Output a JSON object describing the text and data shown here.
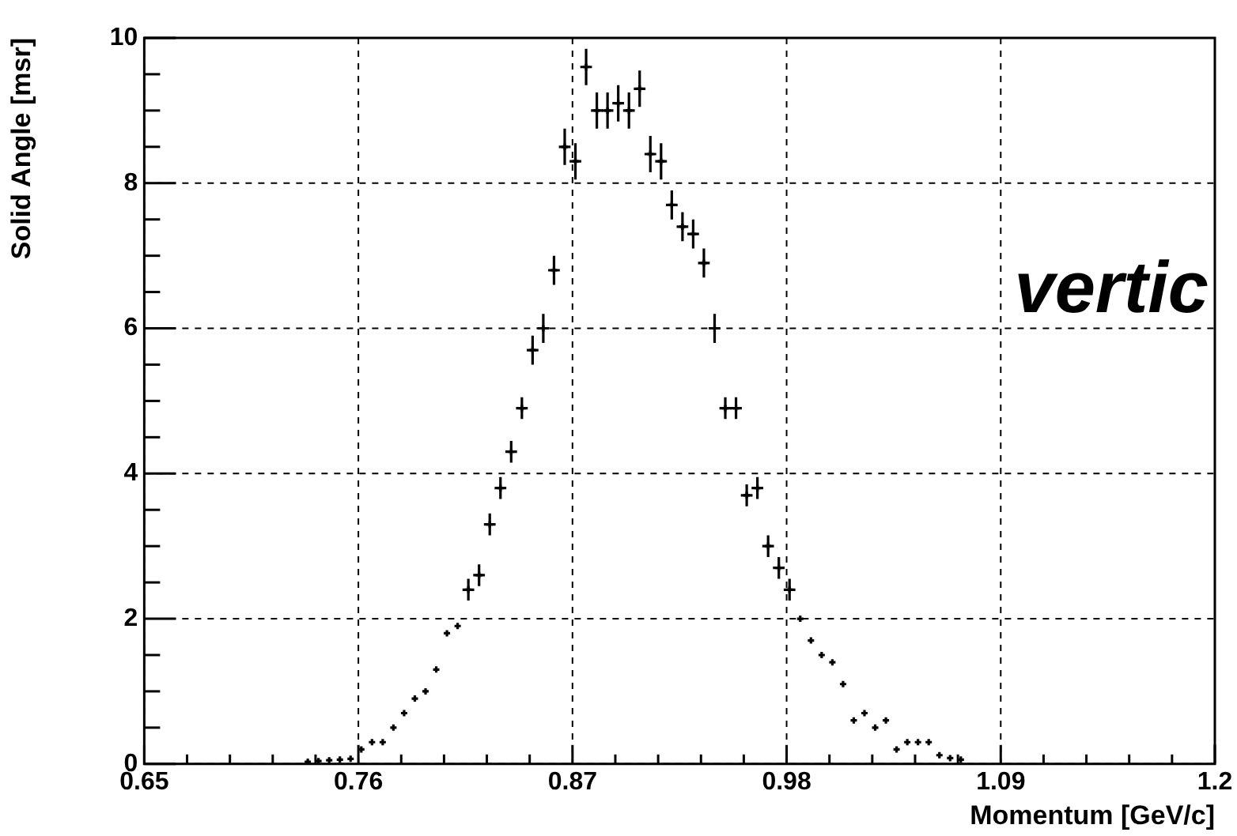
{
  "chart_data": {
    "type": "scatter",
    "xlabel": "Momentum [GeV/c]",
    "ylabel": "Solid Angle [msr]",
    "marker": "cross",
    "grid": true,
    "x": [
      0.734,
      0.7395,
      0.745,
      0.7505,
      0.756,
      0.7615,
      0.767,
      0.7725,
      0.778,
      0.7835,
      0.789,
      0.7945,
      0.8,
      0.8055,
      0.811,
      0.8165,
      0.822,
      0.8275,
      0.833,
      0.8385,
      0.844,
      0.8495,
      0.855,
      0.8605,
      0.866,
      0.8715,
      0.877,
      0.8825,
      0.888,
      0.8935,
      0.899,
      0.9045,
      0.91,
      0.9155,
      0.921,
      0.9265,
      0.932,
      0.9375,
      0.943,
      0.9485,
      0.954,
      0.9595,
      0.965,
      0.9705,
      0.976,
      0.9815,
      0.987,
      0.9925,
      0.998,
      1.0035,
      1.009,
      1.0145,
      1.02,
      1.0255,
      1.031,
      1.0365,
      1.042,
      1.0475,
      1.053,
      1.0585,
      1.064,
      1.0695
    ],
    "values": [
      0.03,
      0.04,
      0.05,
      0.06,
      0.07,
      0.2,
      0.3,
      0.3,
      0.5,
      0.7,
      0.9,
      1.0,
      1.3,
      1.8,
      1.9,
      2.4,
      2.6,
      3.3,
      3.8,
      4.3,
      4.9,
      5.7,
      6.0,
      6.8,
      8.5,
      8.3,
      9.6,
      9.0,
      9.0,
      9.1,
      9.0,
      9.3,
      8.4,
      8.3,
      7.7,
      7.4,
      7.3,
      6.9,
      6.0,
      4.9,
      4.9,
      3.7,
      3.8,
      3.0,
      2.7,
      2.4,
      2.0,
      1.7,
      1.5,
      1.4,
      1.1,
      0.6,
      0.7,
      0.5,
      0.6,
      0.2,
      0.3,
      0.3,
      0.3,
      0.12,
      0.08,
      0.06
    ],
    "errors": [
      null,
      null,
      null,
      null,
      null,
      null,
      null,
      null,
      null,
      null,
      null,
      null,
      null,
      null,
      null,
      0.15,
      0.15,
      0.15,
      0.15,
      0.15,
      0.15,
      0.2,
      0.2,
      0.2,
      0.25,
      0.25,
      0.25,
      0.25,
      0.25,
      0.25,
      0.25,
      0.25,
      0.25,
      0.25,
      0.2,
      0.2,
      0.2,
      0.2,
      0.2,
      0.15,
      0.15,
      0.15,
      0.15,
      0.15,
      0.15,
      0.15,
      null,
      null,
      null,
      null,
      null,
      null,
      null,
      null,
      null,
      null,
      null,
      null,
      null,
      null,
      null,
      null
    ],
    "xerrors": [
      null,
      null,
      null,
      null,
      null,
      null,
      null,
      null,
      null,
      null,
      null,
      null,
      null,
      null,
      null,
      0.003,
      0.003,
      0.003,
      0.003,
      0.003,
      0.003,
      0.003,
      0.003,
      0.003,
      0.003,
      0.003,
      0.003,
      0.003,
      0.003,
      0.003,
      0.003,
      0.003,
      0.003,
      0.003,
      0.003,
      0.003,
      0.003,
      0.003,
      0.003,
      0.003,
      0.003,
      0.003,
      0.003,
      0.003,
      0.003,
      0.003,
      null,
      null,
      null,
      null,
      null,
      null,
      null,
      null,
      null,
      null,
      null,
      null,
      null,
      null,
      null,
      null
    ],
    "color": "#000000",
    "xlim": [
      0.65,
      1.2
    ],
    "xticks": [
      0.65,
      {
        "value": 0.672,
        "label": null
      },
      {
        "value": 0.694,
        "label": null
      },
      {
        "value": 0.716,
        "label": null
      },
      {
        "value": 0.738,
        "label": null
      },
      0.76,
      {
        "value": 0.782,
        "label": null
      },
      {
        "value": 0.804,
        "label": null
      },
      {
        "value": 0.826,
        "label": null
      },
      {
        "value": 0.848,
        "label": null
      },
      0.87,
      {
        "value": 0.892,
        "label": null
      },
      {
        "value": 0.914,
        "label": null
      },
      {
        "value": 0.936,
        "label": null
      },
      {
        "value": 0.958,
        "label": null
      },
      0.98,
      {
        "value": 1.002,
        "label": null
      },
      {
        "value": 1.024,
        "label": null
      },
      {
        "value": 1.046,
        "label": null
      },
      {
        "value": 1.068,
        "label": null
      },
      1.09,
      {
        "value": 1.112,
        "label": null
      },
      {
        "value": 1.134,
        "label": null
      },
      {
        "value": 1.156,
        "label": null
      },
      {
        "value": 1.178,
        "label": null
      },
      1.2
    ],
    "ylim": [
      0,
      10
    ],
    "yticks": [
      0,
      {
        "value": 0.5,
        "label": null
      },
      {
        "value": 1,
        "label": null
      },
      {
        "value": 1.5,
        "label": null
      },
      2,
      {
        "value": 2.5,
        "label": null
      },
      {
        "value": 3,
        "label": null
      },
      {
        "value": 3.5,
        "label": null
      },
      4,
      {
        "value": 4.5,
        "label": null
      },
      {
        "value": 5,
        "label": null
      },
      {
        "value": 5.5,
        "label": null
      },
      6,
      {
        "value": 6.5,
        "label": null
      },
      {
        "value": 7,
        "label": null
      },
      {
        "value": 7.5,
        "label": null
      },
      8,
      {
        "value": 8.5,
        "label": null
      },
      {
        "value": 9,
        "label": null
      },
      {
        "value": 9.5,
        "label": null
      },
      10
    ],
    "annotations": [
      "vertic"
    ]
  }
}
